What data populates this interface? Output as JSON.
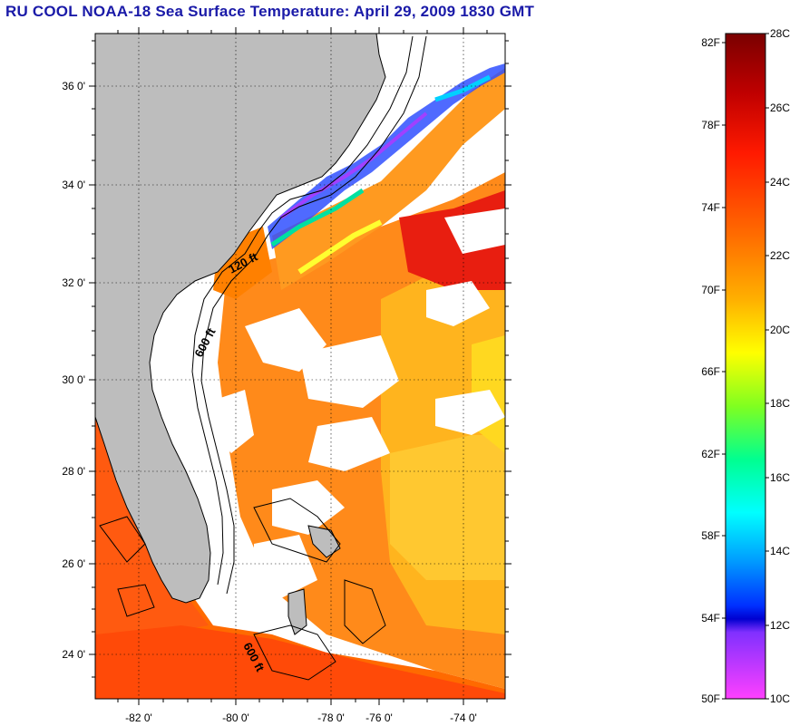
{
  "title": "RU COOL  NOAA-18  Sea Surface Temperature:  April 29, 2009 1830 GMT",
  "map": {
    "lat_labels": [
      "36 0'",
      "34 0'",
      "32 0'",
      "30 0'",
      "28 0'",
      "26 0'",
      "24 0'"
    ],
    "lon_labels": [
      "-82 0'",
      "-80 0'",
      "-78 0'",
      "-76 0'",
      "-74 0'"
    ],
    "contour_labels": [
      "120 ft",
      "600 ft",
      "600 ft"
    ],
    "colors": {
      "land": "#bdbdbd",
      "cloud": "#ffffff",
      "sst_warm": "#ff6a00",
      "sst_mid": "#ffb400",
      "sst_cool": "#ffe000",
      "sst_hot": "#e81e10"
    }
  },
  "colorbar": {
    "fahrenheit_labels": [
      "82F",
      "78F",
      "74F",
      "70F",
      "66F",
      "62F",
      "58F",
      "54F",
      "50F"
    ],
    "celsius_labels": [
      "28C",
      "26C",
      "24C",
      "22C",
      "20C",
      "18C",
      "16C",
      "14C",
      "12C",
      "10C"
    ],
    "colors": [
      "#7a0000",
      "#c80000",
      "#ff1a00",
      "#ff6a00",
      "#ffb000",
      "#ffff00",
      "#7fff00",
      "#00ff80",
      "#00ffff",
      "#00a0ff",
      "#0040ff",
      "#0000e0",
      "#8020ff",
      "#ff40ff"
    ]
  }
}
